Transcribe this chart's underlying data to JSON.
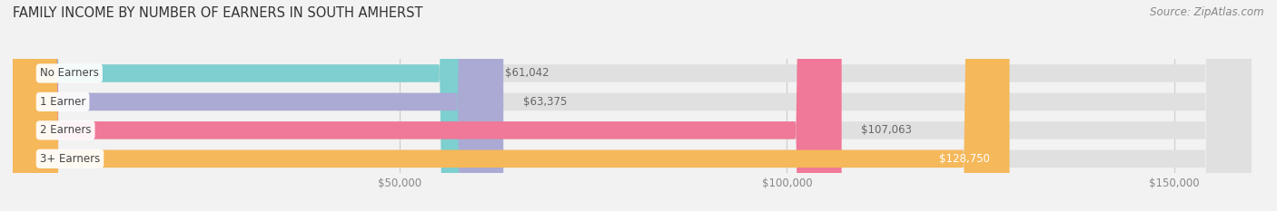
{
  "title": "FAMILY INCOME BY NUMBER OF EARNERS IN SOUTH AMHERST",
  "source": "Source: ZipAtlas.com",
  "categories": [
    "No Earners",
    "1 Earner",
    "2 Earners",
    "3+ Earners"
  ],
  "values": [
    61042,
    63375,
    107063,
    128750
  ],
  "bar_colors": [
    "#7ECFCF",
    "#AAAAD4",
    "#F07898",
    "#F5B85A"
  ],
  "value_labels": [
    "$61,042",
    "$63,375",
    "$107,063",
    "$128,750"
  ],
  "value_inside": [
    false,
    false,
    false,
    true
  ],
  "xlim": [
    0,
    160000
  ],
  "xticks": [
    50000,
    100000,
    150000
  ],
  "xtick_labels": [
    "$50,000",
    "$100,000",
    "$150,000"
  ],
  "bg_color": "#f2f2f2",
  "bar_bg_color": "#e0e0e0",
  "title_fontsize": 10.5,
  "source_fontsize": 8.5,
  "label_fontsize": 8.5,
  "value_fontsize": 8.5,
  "bar_height": 0.62
}
